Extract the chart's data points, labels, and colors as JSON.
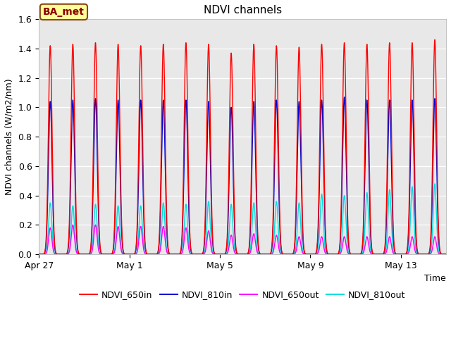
{
  "title": "NDVI channels",
  "ylabel": "NDVI channels (W/m2/nm)",
  "xlabel": "Time",
  "ylim": [
    0.0,
    1.6
  ],
  "yticks": [
    0.0,
    0.2,
    0.4,
    0.6,
    0.8,
    1.0,
    1.2,
    1.4,
    1.6
  ],
  "lines": {
    "NDVI_650in": {
      "color": "#ff0000",
      "label": "NDVI_650in"
    },
    "NDVI_810in": {
      "color": "#0000cc",
      "label": "NDVI_810in"
    },
    "NDVI_650out": {
      "color": "#ff00ff",
      "label": "NDVI_650out"
    },
    "NDVI_810out": {
      "color": "#00dddd",
      "label": "NDVI_810out"
    }
  },
  "annotation_box": {
    "text": "BA_met",
    "facecolor": "#ffff99",
    "edgecolor": "#8B4513",
    "textcolor": "#8B0000"
  },
  "num_days": 18,
  "peak_650in": [
    1.42,
    1.43,
    1.44,
    1.43,
    1.42,
    1.43,
    1.44,
    1.43,
    1.37,
    1.43,
    1.42,
    1.41,
    1.43,
    1.44,
    1.43,
    1.44,
    1.44,
    1.46
  ],
  "peak_810in": [
    1.04,
    1.05,
    1.06,
    1.05,
    1.05,
    1.05,
    1.05,
    1.04,
    1.0,
    1.04,
    1.05,
    1.04,
    1.05,
    1.07,
    1.05,
    1.05,
    1.05,
    1.06
  ],
  "peak_650out": [
    0.18,
    0.2,
    0.2,
    0.19,
    0.19,
    0.19,
    0.18,
    0.16,
    0.13,
    0.14,
    0.13,
    0.12,
    0.12,
    0.12,
    0.12,
    0.12,
    0.12,
    0.12
  ],
  "peak_810out": [
    0.35,
    0.33,
    0.34,
    0.33,
    0.33,
    0.35,
    0.34,
    0.36,
    0.34,
    0.35,
    0.36,
    0.35,
    0.41,
    0.4,
    0.42,
    0.44,
    0.46,
    0.48
  ],
  "xtick_day_offsets": [
    0,
    4,
    8,
    12,
    16
  ],
  "xtick_labels": [
    "Apr 27",
    "May 1",
    "May 5",
    "May 9",
    "May 13"
  ],
  "linewidth": 1.0,
  "pulse_sigma_in": 0.08,
  "pulse_sigma_out": 0.07
}
